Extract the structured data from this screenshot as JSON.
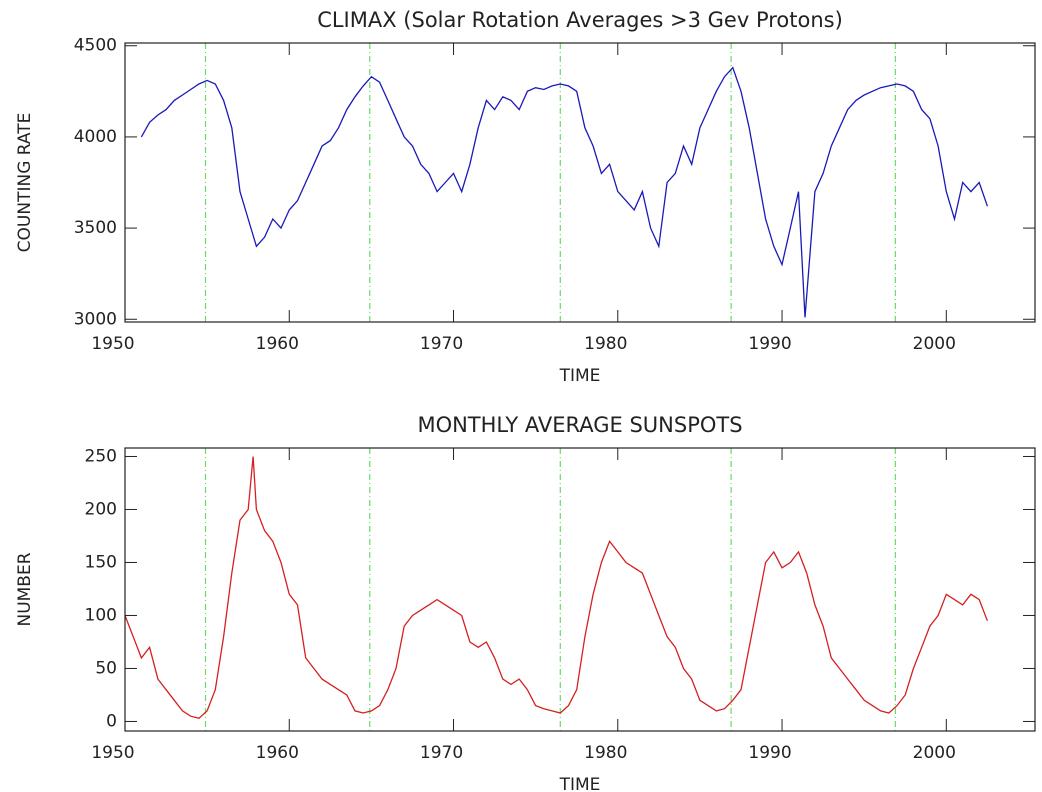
{
  "chart_data": [
    {
      "type": "line",
      "title": "CLIMAX (Solar Rotation Averages >3 Gev Protons)",
      "xlabel": "TIME",
      "ylabel": "COUNTING RATE",
      "xlim": [
        1950,
        2005.4
      ],
      "xticks": [
        1950,
        1960,
        1970,
        1980,
        1990,
        2000
      ],
      "ylim": [
        2985,
        4515
      ],
      "yticks": [
        3000,
        3500,
        4000,
        4500
      ],
      "color": "#1a1ab8",
      "reference_lines": {
        "x": [
          1954.9,
          1964.9,
          1976.5,
          1986.9,
          1996.9
        ],
        "color": "#66dd66"
      },
      "x": [
        1951,
        1951.5,
        1952,
        1952.5,
        1953,
        1953.5,
        1954,
        1954.5,
        1955,
        1955.5,
        1956,
        1956.5,
        1957,
        1957.5,
        1958,
        1958.5,
        1959,
        1959.5,
        1960,
        1960.5,
        1961,
        1961.5,
        1962,
        1962.5,
        1963,
        1963.5,
        1964,
        1964.5,
        1965,
        1965.5,
        1966,
        1966.5,
        1967,
        1967.5,
        1968,
        1968.5,
        1969,
        1969.5,
        1970,
        1970.5,
        1971,
        1971.5,
        1972,
        1972.5,
        1973,
        1973.5,
        1974,
        1974.5,
        1975,
        1975.5,
        1976,
        1976.5,
        1977,
        1977.5,
        1978,
        1978.5,
        1979,
        1979.5,
        1980,
        1980.5,
        1981,
        1981.5,
        1982,
        1982.5,
        1983,
        1983.5,
        1984,
        1984.5,
        1985,
        1985.5,
        1986,
        1986.5,
        1987,
        1987.5,
        1988,
        1988.5,
        1989,
        1989.5,
        1990,
        1990.5,
        1991,
        1991.4,
        1992,
        1992.5,
        1993,
        1993.5,
        1994,
        1994.5,
        1995,
        1995.5,
        1996,
        1996.5,
        1997,
        1997.5,
        1998,
        1998.5,
        1999,
        1999.5,
        2000,
        2000.5,
        2001,
        2001.5,
        2002,
        2002.5
      ],
      "values": [
        4000,
        4080,
        4120,
        4150,
        4200,
        4230,
        4260,
        4290,
        4310,
        4290,
        4200,
        4050,
        3700,
        3550,
        3400,
        3450,
        3550,
        3500,
        3600,
        3650,
        3750,
        3850,
        3950,
        3980,
        4050,
        4150,
        4220,
        4280,
        4330,
        4300,
        4200,
        4100,
        4000,
        3950,
        3850,
        3800,
        3700,
        3750,
        3800,
        3700,
        3850,
        4050,
        4200,
        4150,
        4220,
        4200,
        4150,
        4250,
        4270,
        4260,
        4280,
        4290,
        4280,
        4250,
        4050,
        3950,
        3800,
        3850,
        3700,
        3650,
        3600,
        3700,
        3500,
        3400,
        3750,
        3800,
        3950,
        3850,
        4050,
        4150,
        4250,
        4330,
        4380,
        4250,
        4050,
        3800,
        3550,
        3400,
        3300,
        3500,
        3700,
        3010,
        3700,
        3800,
        3950,
        4050,
        4150,
        4200,
        4230,
        4250,
        4270,
        4280,
        4290,
        4280,
        4250,
        4150,
        4100,
        3950,
        3700,
        3550,
        3750,
        3700,
        3750,
        3620
      ]
    },
    {
      "type": "line",
      "title": "MONTHLY AVERAGE SUNSPOTS",
      "xlabel": "TIME",
      "ylabel": "NUMBER",
      "xlim": [
        1950,
        2005.4
      ],
      "xticks": [
        1950,
        1960,
        1970,
        1980,
        1990,
        2000
      ],
      "ylim": [
        -9,
        258
      ],
      "yticks": [
        0,
        50,
        100,
        150,
        200,
        250
      ],
      "color": "#d42020",
      "reference_lines": {
        "x": [
          1954.9,
          1964.9,
          1976.5,
          1986.9,
          1996.9
        ],
        "color": "#66dd66"
      },
      "x": [
        1950,
        1950.5,
        1951,
        1951.5,
        1952,
        1952.5,
        1953,
        1953.5,
        1954,
        1954.5,
        1955,
        1955.5,
        1956,
        1956.5,
        1957,
        1957.5,
        1957.8,
        1958,
        1958.5,
        1959,
        1959.5,
        1960,
        1960.5,
        1961,
        1961.5,
        1962,
        1962.5,
        1963,
        1963.5,
        1964,
        1964.5,
        1965,
        1965.5,
        1966,
        1966.5,
        1967,
        1967.5,
        1968,
        1968.5,
        1969,
        1969.5,
        1970,
        1970.5,
        1971,
        1971.5,
        1972,
        1972.5,
        1973,
        1973.5,
        1974,
        1974.5,
        1975,
        1975.5,
        1976,
        1976.5,
        1977,
        1977.5,
        1978,
        1978.5,
        1979,
        1979.5,
        1980,
        1980.5,
        1981,
        1981.5,
        1982,
        1982.5,
        1983,
        1983.5,
        1984,
        1984.5,
        1985,
        1985.5,
        1986,
        1986.5,
        1987,
        1987.5,
        1988,
        1988.5,
        1989,
        1989.5,
        1990,
        1990.5,
        1991,
        1991.5,
        1992,
        1992.5,
        1993,
        1993.5,
        1994,
        1994.5,
        1995,
        1995.5,
        1996,
        1996.5,
        1997,
        1997.5,
        1998,
        1998.5,
        1999,
        1999.5,
        2000,
        2000.5,
        2001,
        2001.5,
        2002,
        2002.5
      ],
      "values": [
        100,
        80,
        60,
        70,
        40,
        30,
        20,
        10,
        5,
        3,
        10,
        30,
        80,
        140,
        190,
        200,
        250,
        200,
        180,
        170,
        150,
        120,
        110,
        60,
        50,
        40,
        35,
        30,
        25,
        10,
        8,
        10,
        15,
        30,
        50,
        90,
        100,
        105,
        110,
        115,
        110,
        105,
        100,
        75,
        70,
        75,
        60,
        40,
        35,
        40,
        30,
        15,
        12,
        10,
        8,
        15,
        30,
        80,
        120,
        150,
        170,
        160,
        150,
        145,
        140,
        120,
        100,
        80,
        70,
        50,
        40,
        20,
        15,
        10,
        12,
        20,
        30,
        70,
        110,
        150,
        160,
        145,
        150,
        160,
        140,
        110,
        90,
        60,
        50,
        40,
        30,
        20,
        15,
        10,
        8,
        15,
        25,
        50,
        70,
        90,
        100,
        120,
        115,
        110,
        120,
        115,
        95
      ]
    }
  ]
}
